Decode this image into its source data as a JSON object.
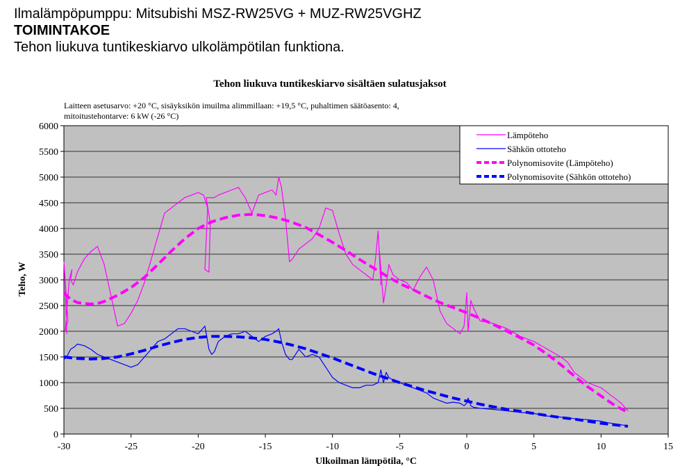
{
  "header": {
    "line1": "Ilmalämpöpumppu: Mitsubishi MSZ-RW25VG + MUZ-RW25VGHZ",
    "line2": "TOIMINTAKOE",
    "line3": "Tehon liukuva tuntikeskiarvo ulkolämpötilan funktiona."
  },
  "chart_data": {
    "type": "line",
    "title": "Tehon liukuva tuntikeskiarvo sisältäen sulatusjaksot",
    "subtitle_lines": [
      "Laitteen asetusarvo: +20 °C, sisäyksikön imuilma alimmillaan: +19,5 °C, puhaltimen säätöasento: 4,",
      "mitoitustehontarve: 6 kW (-26 °C)"
    ],
    "xlabel": "Ulkoilman lämpötila, °C",
    "ylabel": "Teho, W",
    "xlim": [
      -30,
      15
    ],
    "ylim": [
      0,
      6000
    ],
    "xticks": [
      -30,
      -25,
      -20,
      -15,
      -10,
      -5,
      0,
      5,
      10,
      15
    ],
    "yticks": [
      0,
      500,
      1000,
      1500,
      2000,
      2500,
      3000,
      3500,
      4000,
      4500,
      5000,
      5500,
      6000
    ],
    "xtick_labels": [
      "-30",
      "-25",
      "-20",
      "-15",
      "-10",
      "-5",
      "0",
      "5",
      "10",
      "15"
    ],
    "ytick_labels": [
      "0",
      "500",
      "1000",
      "1500",
      "2000",
      "2500",
      "3000",
      "3500",
      "4000",
      "4500",
      "5000",
      "5500",
      "6000"
    ],
    "grid": "horizontal",
    "legend": "top-right",
    "plot_background": "#c0c0c0",
    "series": [
      {
        "name": "Lämpöteho",
        "color": "#ff00ff",
        "style": "solid-thin",
        "x": [
          -29.8,
          -29.9,
          -30,
          -29.7,
          -29.9,
          -29.6,
          -29.4,
          -29.5,
          -29.3,
          -29.0,
          -28.5,
          -28.0,
          -27.5,
          -27.0,
          -26.5,
          -26.0,
          -25.5,
          -25.0,
          -24.5,
          -24.0,
          -23.5,
          -23.0,
          -22.5,
          -22.0,
          -21.5,
          -21.0,
          -20.5,
          -20.0,
          -19.6,
          -19.3,
          -19.5,
          -19.2,
          -19.1,
          -19.4,
          -18.8,
          -18.5,
          -18.0,
          -17.5,
          -17.0,
          -16.5,
          -16.0,
          -15.5,
          -15.0,
          -14.5,
          -14.2,
          -14.0,
          -13.8,
          -13.5,
          -13.2,
          -13.0,
          -12.5,
          -12.0,
          -11.5,
          -11.0,
          -10.5,
          -10.0,
          -9.5,
          -9.0,
          -8.5,
          -8.0,
          -7.5,
          -7.0,
          -6.8,
          -6.6,
          -6.4,
          -6.5,
          -6.2,
          -6.0,
          -5.8,
          -5.5,
          -5.0,
          -4.5,
          -4.0,
          -3.5,
          -3.0,
          -2.5,
          -2.0,
          -1.5,
          -1.0,
          -0.5,
          -0.2,
          0.0,
          0.1,
          0.3,
          0.5,
          1.0,
          2.0,
          3.0,
          4.0,
          5.0,
          6.0,
          7.0,
          7.5,
          8.0,
          9.0,
          10.0,
          10.5,
          11.0,
          11.5,
          12.0
        ],
        "y": [
          1950,
          2900,
          3350,
          2200,
          2000,
          3000,
          3200,
          3000,
          2900,
          3150,
          3400,
          3550,
          3650,
          3300,
          2700,
          2100,
          2150,
          2350,
          2600,
          2950,
          3400,
          3850,
          4300,
          4400,
          4500,
          4600,
          4650,
          4700,
          4650,
          4400,
          3200,
          3150,
          4100,
          4600,
          4600,
          4650,
          4700,
          4750,
          4800,
          4600,
          4300,
          4650,
          4700,
          4750,
          4650,
          5000,
          4800,
          4200,
          3350,
          3400,
          3600,
          3700,
          3800,
          4000,
          4400,
          4350,
          3900,
          3500,
          3300,
          3200,
          3100,
          3000,
          3400,
          3950,
          2900,
          3550,
          2550,
          2900,
          3300,
          3100,
          3000,
          2950,
          2800,
          3050,
          3250,
          3000,
          2400,
          2150,
          2050,
          1950,
          2100,
          2750,
          2000,
          2600,
          2450,
          2200,
          2150,
          2050,
          1900,
          1800,
          1650,
          1500,
          1400,
          1200,
          1000,
          900,
          800,
          700,
          600,
          450
        ]
      },
      {
        "name": "Sähkön ottoteho",
        "color": "#0000ff",
        "style": "solid-thin",
        "x": [
          -30,
          -29.8,
          -29.5,
          -29.2,
          -29.0,
          -28.5,
          -28.0,
          -27.5,
          -27.0,
          -26.5,
          -26.0,
          -25.5,
          -25.0,
          -24.5,
          -24.0,
          -23.5,
          -23.0,
          -22.5,
          -22.0,
          -21.5,
          -21.0,
          -20.5,
          -20.0,
          -19.5,
          -19.2,
          -19.0,
          -18.8,
          -18.5,
          -18.0,
          -17.5,
          -17.0,
          -16.5,
          -16.0,
          -15.5,
          -15.0,
          -14.5,
          -14.2,
          -14.0,
          -13.8,
          -13.5,
          -13.2,
          -13.0,
          -12.5,
          -12.0,
          -11.5,
          -11.0,
          -10.5,
          -10.0,
          -9.5,
          -9.0,
          -8.5,
          -8.0,
          -7.5,
          -7.0,
          -6.6,
          -6.4,
          -6.2,
          -6.0,
          -5.8,
          -5.5,
          -5.0,
          -4.5,
          -4.0,
          -3.5,
          -3.0,
          -2.5,
          -2.0,
          -1.5,
          -1.0,
          -0.5,
          -0.2,
          0.0,
          0.1,
          0.3,
          0.5,
          1.0,
          2.0,
          3.0,
          4.0,
          5.0,
          6.0,
          7.0,
          8.0,
          9.0,
          10.0,
          10.5,
          11.0,
          11.5,
          12.0
        ],
        "y": [
          1450,
          1500,
          1650,
          1700,
          1750,
          1720,
          1650,
          1550,
          1500,
          1450,
          1400,
          1350,
          1300,
          1350,
          1500,
          1650,
          1800,
          1850,
          1950,
          2050,
          2050,
          2000,
          1950,
          2100,
          1650,
          1550,
          1600,
          1800,
          1900,
          1950,
          1950,
          2000,
          1900,
          1800,
          1900,
          1950,
          2000,
          2050,
          1800,
          1550,
          1450,
          1450,
          1650,
          1500,
          1550,
          1500,
          1300,
          1100,
          1000,
          950,
          900,
          900,
          950,
          950,
          1000,
          1250,
          1000,
          1200,
          1100,
          1050,
          1000,
          950,
          900,
          850,
          800,
          700,
          650,
          600,
          620,
          600,
          550,
          600,
          700,
          550,
          520,
          500,
          480,
          450,
          420,
          400,
          350,
          330,
          300,
          280,
          250,
          220,
          200,
          180,
          160
        ]
      },
      {
        "name": "Polynomisovite (Lämpöteho)",
        "color": "#ff00ff",
        "style": "dashed-thick",
        "x": [
          -30,
          -29.5,
          -29,
          -28.5,
          -28,
          -27.5,
          -27,
          -26,
          -25,
          -24,
          -23,
          -22,
          -21,
          -20,
          -19,
          -18,
          -17,
          -16,
          -15,
          -14,
          -13,
          -12,
          -11,
          -10,
          -9,
          -8,
          -7,
          -6,
          -5,
          -4,
          -3,
          -2,
          -1,
          0,
          1,
          2,
          3,
          4,
          5,
          6,
          7,
          8,
          9,
          10,
          11,
          12
        ],
        "y": [
          2750,
          2620,
          2560,
          2540,
          2530,
          2540,
          2580,
          2700,
          2850,
          3050,
          3300,
          3560,
          3800,
          4000,
          4130,
          4210,
          4260,
          4275,
          4250,
          4200,
          4120,
          4020,
          3880,
          3730,
          3570,
          3400,
          3240,
          3080,
          2930,
          2810,
          2680,
          2560,
          2460,
          2360,
          2250,
          2130,
          2000,
          1870,
          1730,
          1550,
          1350,
          1130,
          920,
          740,
          560,
          420
        ]
      },
      {
        "name": "Polynomisovite (Sähkön ottoteho)",
        "color": "#0000ff",
        "style": "dashed-thick",
        "x": [
          -30,
          -29,
          -28,
          -27,
          -26,
          -25,
          -24,
          -23,
          -22,
          -21,
          -20,
          -19,
          -18,
          -17,
          -16,
          -15,
          -14,
          -13,
          -12,
          -11,
          -10,
          -9,
          -8,
          -7,
          -6,
          -5,
          -4,
          -3,
          -2,
          -1,
          0,
          1,
          2,
          3,
          4,
          5,
          6,
          7,
          8,
          9,
          10,
          11,
          12
        ],
        "y": [
          1500,
          1470,
          1460,
          1470,
          1500,
          1560,
          1630,
          1710,
          1780,
          1840,
          1880,
          1900,
          1900,
          1890,
          1870,
          1840,
          1790,
          1730,
          1660,
          1570,
          1480,
          1380,
          1280,
          1180,
          1090,
          1000,
          920,
          840,
          770,
          700,
          640,
          580,
          530,
          480,
          440,
          400,
          360,
          320,
          290,
          250,
          210,
          180,
          150
        ]
      }
    ]
  }
}
